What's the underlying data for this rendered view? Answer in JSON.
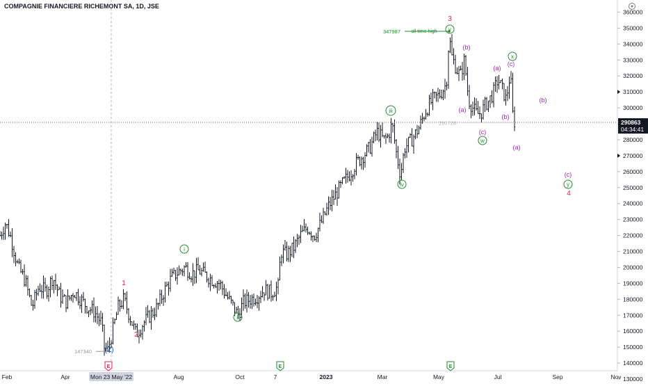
{
  "title": "COMPAGNIE FINANCIERE RICHEMONT SA, 1D, JSE",
  "colors": {
    "bar": "#131722",
    "green": "#22882f",
    "red": "#e0204a",
    "purple": "#9c27b0",
    "blue": "#1e5cc8",
    "gray": "#9598a1"
  },
  "chart_data": {
    "type": "bar",
    "subtype": "ohlc",
    "title": "COMPAGNIE FINANCIERE RICHEMONT SA, 1D, JSE",
    "ylim": [
      130000,
      365000
    ],
    "y_ticks": [
      130000,
      140000,
      150000,
      160000,
      170000,
      180000,
      190000,
      200000,
      210000,
      220000,
      230000,
      240000,
      250000,
      260000,
      270000,
      280000,
      290000,
      300000,
      310000,
      320000,
      330000,
      340000,
      350000,
      360000
    ],
    "x_ticks": [
      "Feb",
      "Apr",
      "Mon 23 May '22",
      "Aug",
      "Oct",
      "7",
      "2023",
      "Mar",
      "May",
      "Jul",
      "Sep",
      "Nov"
    ],
    "last_price": "290863",
    "countdown": "04:34:41",
    "price_path": [
      [
        0,
        220000
      ],
      [
        8,
        228000
      ],
      [
        16,
        218000
      ],
      [
        26,
        200000
      ],
      [
        36,
        192000
      ],
      [
        46,
        175000
      ],
      [
        56,
        188000
      ],
      [
        66,
        185000
      ],
      [
        76,
        194000
      ],
      [
        86,
        182000
      ],
      [
        96,
        178000
      ],
      [
        106,
        185000
      ],
      [
        116,
        180000
      ],
      [
        126,
        175000
      ],
      [
        136,
        172000
      ],
      [
        146,
        165000
      ],
      [
        150,
        150000
      ],
      [
        155,
        148000
      ],
      [
        162,
        160000
      ],
      [
        170,
        175000
      ],
      [
        178,
        180000
      ],
      [
        186,
        170000
      ],
      [
        196,
        158000
      ],
      [
        206,
        165000
      ],
      [
        216,
        170000
      ],
      [
        226,
        175000
      ],
      [
        236,
        185000
      ],
      [
        246,
        193000
      ],
      [
        256,
        197000
      ],
      [
        266,
        200000
      ],
      [
        276,
        196000
      ],
      [
        286,
        198000
      ],
      [
        296,
        195000
      ],
      [
        306,
        192000
      ],
      [
        316,
        190000
      ],
      [
        326,
        182000
      ],
      [
        336,
        175000
      ],
      [
        342,
        170000
      ],
      [
        350,
        178000
      ],
      [
        360,
        180000
      ],
      [
        370,
        182000
      ],
      [
        380,
        186000
      ],
      [
        390,
        184000
      ],
      [
        400,
        188000
      ],
      [
        404,
        210000
      ],
      [
        412,
        208000
      ],
      [
        422,
        212000
      ],
      [
        432,
        220000
      ],
      [
        442,
        225000
      ],
      [
        452,
        220000
      ],
      [
        462,
        228000
      ],
      [
        472,
        238000
      ],
      [
        482,
        245000
      ],
      [
        492,
        252000
      ],
      [
        502,
        258000
      ],
      [
        512,
        265000
      ],
      [
        522,
        270000
      ],
      [
        532,
        275000
      ],
      [
        542,
        285000
      ],
      [
        552,
        280000
      ],
      [
        558,
        282000
      ],
      [
        564,
        290000
      ],
      [
        570,
        272000
      ],
      [
        576,
        258000
      ],
      [
        582,
        275000
      ],
      [
        592,
        280000
      ],
      [
        602,
        287000
      ],
      [
        612,
        298000
      ],
      [
        622,
        305000
      ],
      [
        632,
        308000
      ],
      [
        642,
        315000
      ],
      [
        646,
        345000
      ],
      [
        650,
        332000
      ],
      [
        656,
        325000
      ],
      [
        662,
        320000
      ],
      [
        668,
        330000
      ],
      [
        674,
        305000
      ],
      [
        680,
        300000
      ],
      [
        686,
        296000
      ],
      [
        692,
        297000
      ],
      [
        698,
        302000
      ],
      [
        704,
        305000
      ],
      [
        710,
        310000
      ],
      [
        716,
        318000
      ],
      [
        722,
        312000
      ],
      [
        728,
        305000
      ],
      [
        734,
        322000
      ],
      [
        738,
        292000
      ],
      [
        741,
        290863
      ]
    ],
    "horizontal_levels": [
      {
        "label": "147340",
        "value": 147340
      },
      {
        "label": "347987",
        "value": 347987
      },
      {
        "label": "290728",
        "value": 290728
      }
    ],
    "annotations": [
      {
        "text": "all time high",
        "color": "green"
      },
      {
        "text": "(2)",
        "color": "blue"
      },
      {
        "text": "1",
        "color": "red"
      },
      {
        "text": "2",
        "color": "red"
      },
      {
        "text": "3",
        "color": "red"
      },
      {
        "text": "4",
        "color": "red"
      },
      {
        "text": "i",
        "color": "green",
        "circled": true
      },
      {
        "text": "ii",
        "color": "green",
        "circled": true
      },
      {
        "text": "iii",
        "color": "green",
        "circled": true
      },
      {
        "text": "iv",
        "color": "green",
        "circled": true
      },
      {
        "text": "v",
        "color": "green",
        "circled": true
      },
      {
        "text": "w",
        "color": "green",
        "circled": true
      },
      {
        "text": "x",
        "color": "green",
        "circled": true
      },
      {
        "text": "y",
        "color": "green",
        "circled": true
      },
      {
        "text": "(a)",
        "color": "purple"
      },
      {
        "text": "(b)",
        "color": "purple"
      },
      {
        "text": "(c)",
        "color": "purple"
      }
    ],
    "event_markers": [
      "E",
      "E",
      "E"
    ]
  }
}
